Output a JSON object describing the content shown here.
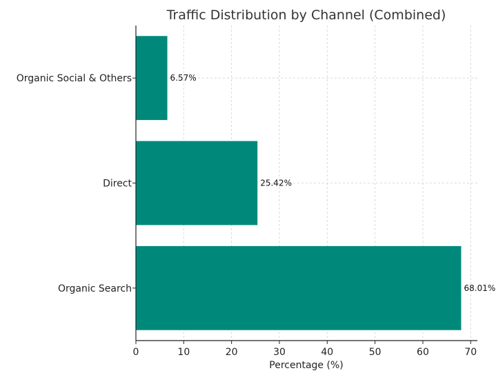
{
  "chart_data": {
    "type": "bar",
    "orientation": "horizontal",
    "title": "Traffic Distribution by Channel (Combined)",
    "xlabel": "Percentage (%)",
    "ylabel": "",
    "categories": [
      "Organic Search",
      "Direct",
      "Organic Social & Others"
    ],
    "values": [
      68.01,
      25.42,
      6.57
    ],
    "data_labels": [
      "68.01%",
      "25.42%",
      "6.57%"
    ],
    "xlim": [
      0,
      71.4
    ],
    "xticks": [
      0,
      10,
      20,
      30,
      40,
      50,
      60,
      70
    ],
    "xtick_labels": [
      "0",
      "10",
      "20",
      "30",
      "40",
      "50",
      "60",
      "70"
    ],
    "grid": true,
    "bar_color": "#00897B"
  }
}
